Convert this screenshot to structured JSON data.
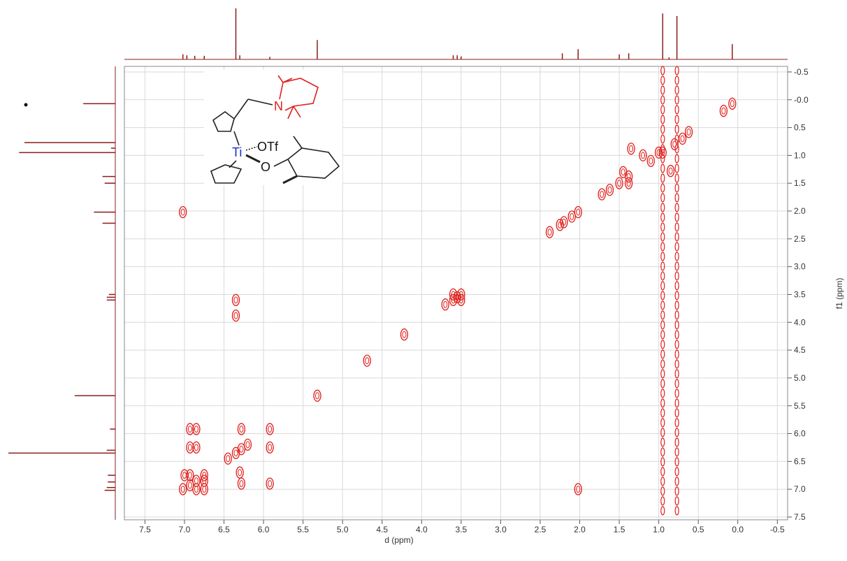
{
  "chart_data": {
    "type": "nmr-2d",
    "x_label": "d (ppm)",
    "y_label": "f1 (ppm)",
    "xlim": [
      7.76,
      -0.63
    ],
    "ylim": [
      -0.6,
      7.55
    ],
    "xticks": [
      7.5,
      {
        "value": 7,
        "label": "7.0"
      },
      6.5,
      {
        "value": 6,
        "label": "6.0"
      },
      5.5,
      {
        "value": 5,
        "label": "5.0"
      },
      4.5,
      {
        "value": 4,
        "label": "4.0"
      },
      3.5,
      {
        "value": 3,
        "label": "3.0"
      },
      2.5,
      {
        "value": 2,
        "label": "2.0"
      },
      1.5,
      {
        "value": 1,
        "label": "1.0"
      },
      0.5,
      {
        "value": 0,
        "label": "0.0"
      },
      -0.5
    ],
    "yticks": [
      -0.5,
      {
        "value": 0,
        "label": "-0.0"
      },
      0.5,
      {
        "value": 1,
        "label": "1.0"
      },
      1.5,
      {
        "value": 2,
        "label": "2.0"
      },
      2.5,
      {
        "value": 3,
        "label": "3.0"
      },
      3.5,
      {
        "value": 4,
        "label": "4.0"
      },
      4.5,
      {
        "value": 5,
        "label": "5.0"
      },
      5.5,
      {
        "value": 6,
        "label": "6.0"
      },
      6.5,
      {
        "value": 7,
        "label": "7.0"
      },
      7.5
    ],
    "grid": true,
    "color": "#e0201c",
    "trace_color": "#8b1c1c",
    "cross_peaks": {
      "x": [
        7.02,
        6.93,
        6.85,
        6.75,
        7.0,
        6.75,
        7.02,
        6.93,
        6.85,
        6.93,
        6.85,
        6.85,
        6.75,
        6.93,
        6.35,
        6.28,
        6.45,
        6.2,
        6.28,
        6.28,
        6.35,
        6.35,
        6.3,
        5.92,
        5.92,
        5.92,
        5.32,
        4.69,
        4.22,
        3.6,
        3.55,
        3.5,
        3.6,
        3.5,
        3.7,
        2.38,
        2.25,
        2.2,
        2.1,
        2.02,
        2.02,
        1.5,
        1.38,
        1.45,
        1.38,
        1.62,
        1.72,
        1.1,
        1.2,
        0.85,
        1.35,
        0.95,
        0.8,
        0.7,
        0.62,
        1.0,
        0.07,
        0.18
      ],
      "y": [
        7.0,
        6.93,
        6.85,
        6.75,
        6.75,
        7.0,
        2.02,
        5.92,
        5.92,
        6.25,
        6.25,
        7.0,
        6.85,
        6.75,
        6.35,
        6.28,
        6.45,
        6.2,
        5.92,
        6.9,
        3.6,
        3.88,
        6.7,
        5.92,
        6.25,
        6.9,
        5.32,
        4.69,
        4.22,
        3.5,
        3.55,
        3.6,
        3.6,
        3.5,
        3.68,
        2.38,
        2.25,
        2.2,
        2.1,
        2.02,
        7.0,
        1.5,
        1.38,
        1.3,
        1.5,
        1.62,
        1.7,
        1.1,
        1.0,
        1.28,
        0.88,
        0.95,
        0.8,
        0.7,
        0.58,
        0.95,
        0.07,
        0.2
      ]
    },
    "noise_ridges": [
      0.95,
      0.77
    ],
    "projection": {
      "x": [
        7.02,
        6.97,
        6.87,
        6.75,
        6.35,
        6.3,
        5.92,
        5.32,
        3.6,
        3.55,
        3.5,
        2.22,
        2.02,
        1.5,
        1.38,
        0.95,
        0.87,
        0.77,
        0.07
      ],
      "heights": [
        0.1,
        0.08,
        0.07,
        0.07,
        1.0,
        0.08,
        0.05,
        0.38,
        0.08,
        0.08,
        0.06,
        0.12,
        0.2,
        0.1,
        0.12,
        0.9,
        0.04,
        0.85,
        0.3
      ]
    },
    "annotations": {
      "amine": "N",
      "metal": "Ti",
      "triflate": "OTf",
      "oxygen": "O"
    }
  }
}
